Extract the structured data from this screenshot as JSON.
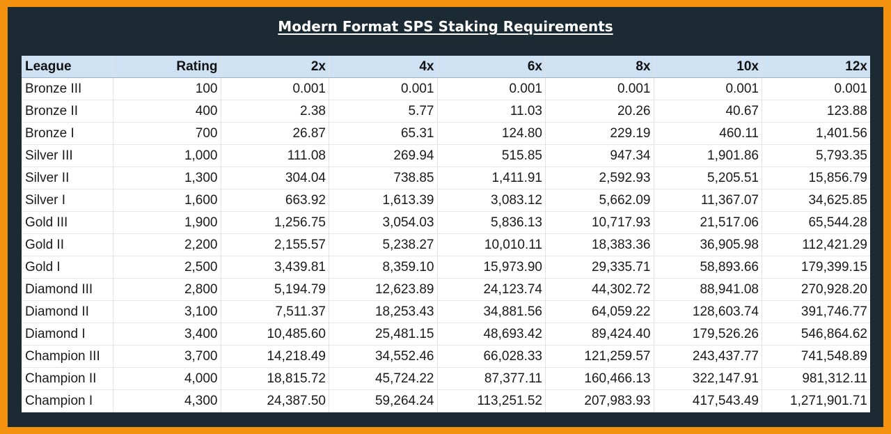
{
  "title": "Modern Format SPS Staking Requirements",
  "colors": {
    "border": "#f3920f",
    "panel": "#1c2b33",
    "header_bg": "#cfe2f3"
  },
  "table": {
    "headers": [
      "League",
      "Rating",
      "2x",
      "4x",
      "6x",
      "8x",
      "10x",
      "12x"
    ],
    "rows": [
      [
        "Bronze III",
        "100",
        "0.001",
        "0.001",
        "0.001",
        "0.001",
        "0.001",
        "0.001"
      ],
      [
        "Bronze II",
        "400",
        "2.38",
        "5.77",
        "11.03",
        "20.26",
        "40.67",
        "123.88"
      ],
      [
        "Bronze I",
        "700",
        "26.87",
        "65.31",
        "124.80",
        "229.19",
        "460.11",
        "1,401.56"
      ],
      [
        "Silver III",
        "1,000",
        "111.08",
        "269.94",
        "515.85",
        "947.34",
        "1,901.86",
        "5,793.35"
      ],
      [
        "Silver II",
        "1,300",
        "304.04",
        "738.85",
        "1,411.91",
        "2,592.93",
        "5,205.51",
        "15,856.79"
      ],
      [
        "Silver I",
        "1,600",
        "663.92",
        "1,613.39",
        "3,083.12",
        "5,662.09",
        "11,367.07",
        "34,625.85"
      ],
      [
        "Gold III",
        "1,900",
        "1,256.75",
        "3,054.03",
        "5,836.13",
        "10,717.93",
        "21,517.06",
        "65,544.28"
      ],
      [
        "Gold II",
        "2,200",
        "2,155.57",
        "5,238.27",
        "10,010.11",
        "18,383.36",
        "36,905.98",
        "112,421.29"
      ],
      [
        "Gold I",
        "2,500",
        "3,439.81",
        "8,359.10",
        "15,973.90",
        "29,335.71",
        "58,893.66",
        "179,399.15"
      ],
      [
        "Diamond III",
        "2,800",
        "5,194.79",
        "12,623.89",
        "24,123.74",
        "44,302.72",
        "88,941.08",
        "270,928.20"
      ],
      [
        "Diamond II",
        "3,100",
        "7,511.37",
        "18,253.43",
        "34,881.56",
        "64,059.22",
        "128,603.74",
        "391,746.77"
      ],
      [
        "Diamond I",
        "3,400",
        "10,485.60",
        "25,481.15",
        "48,693.42",
        "89,424.40",
        "179,526.26",
        "546,864.62"
      ],
      [
        "Champion III",
        "3,700",
        "14,218.49",
        "34,552.46",
        "66,028.33",
        "121,259.57",
        "243,437.77",
        "741,548.89"
      ],
      [
        "Champion II",
        "4,000",
        "18,815.72",
        "45,724.22",
        "87,377.11",
        "160,466.13",
        "322,147.91",
        "981,312.11"
      ],
      [
        "Champion I",
        "4,300",
        "24,387.50",
        "59,264.24",
        "113,251.52",
        "207,983.93",
        "417,543.49",
        "1,271,901.71"
      ]
    ]
  }
}
